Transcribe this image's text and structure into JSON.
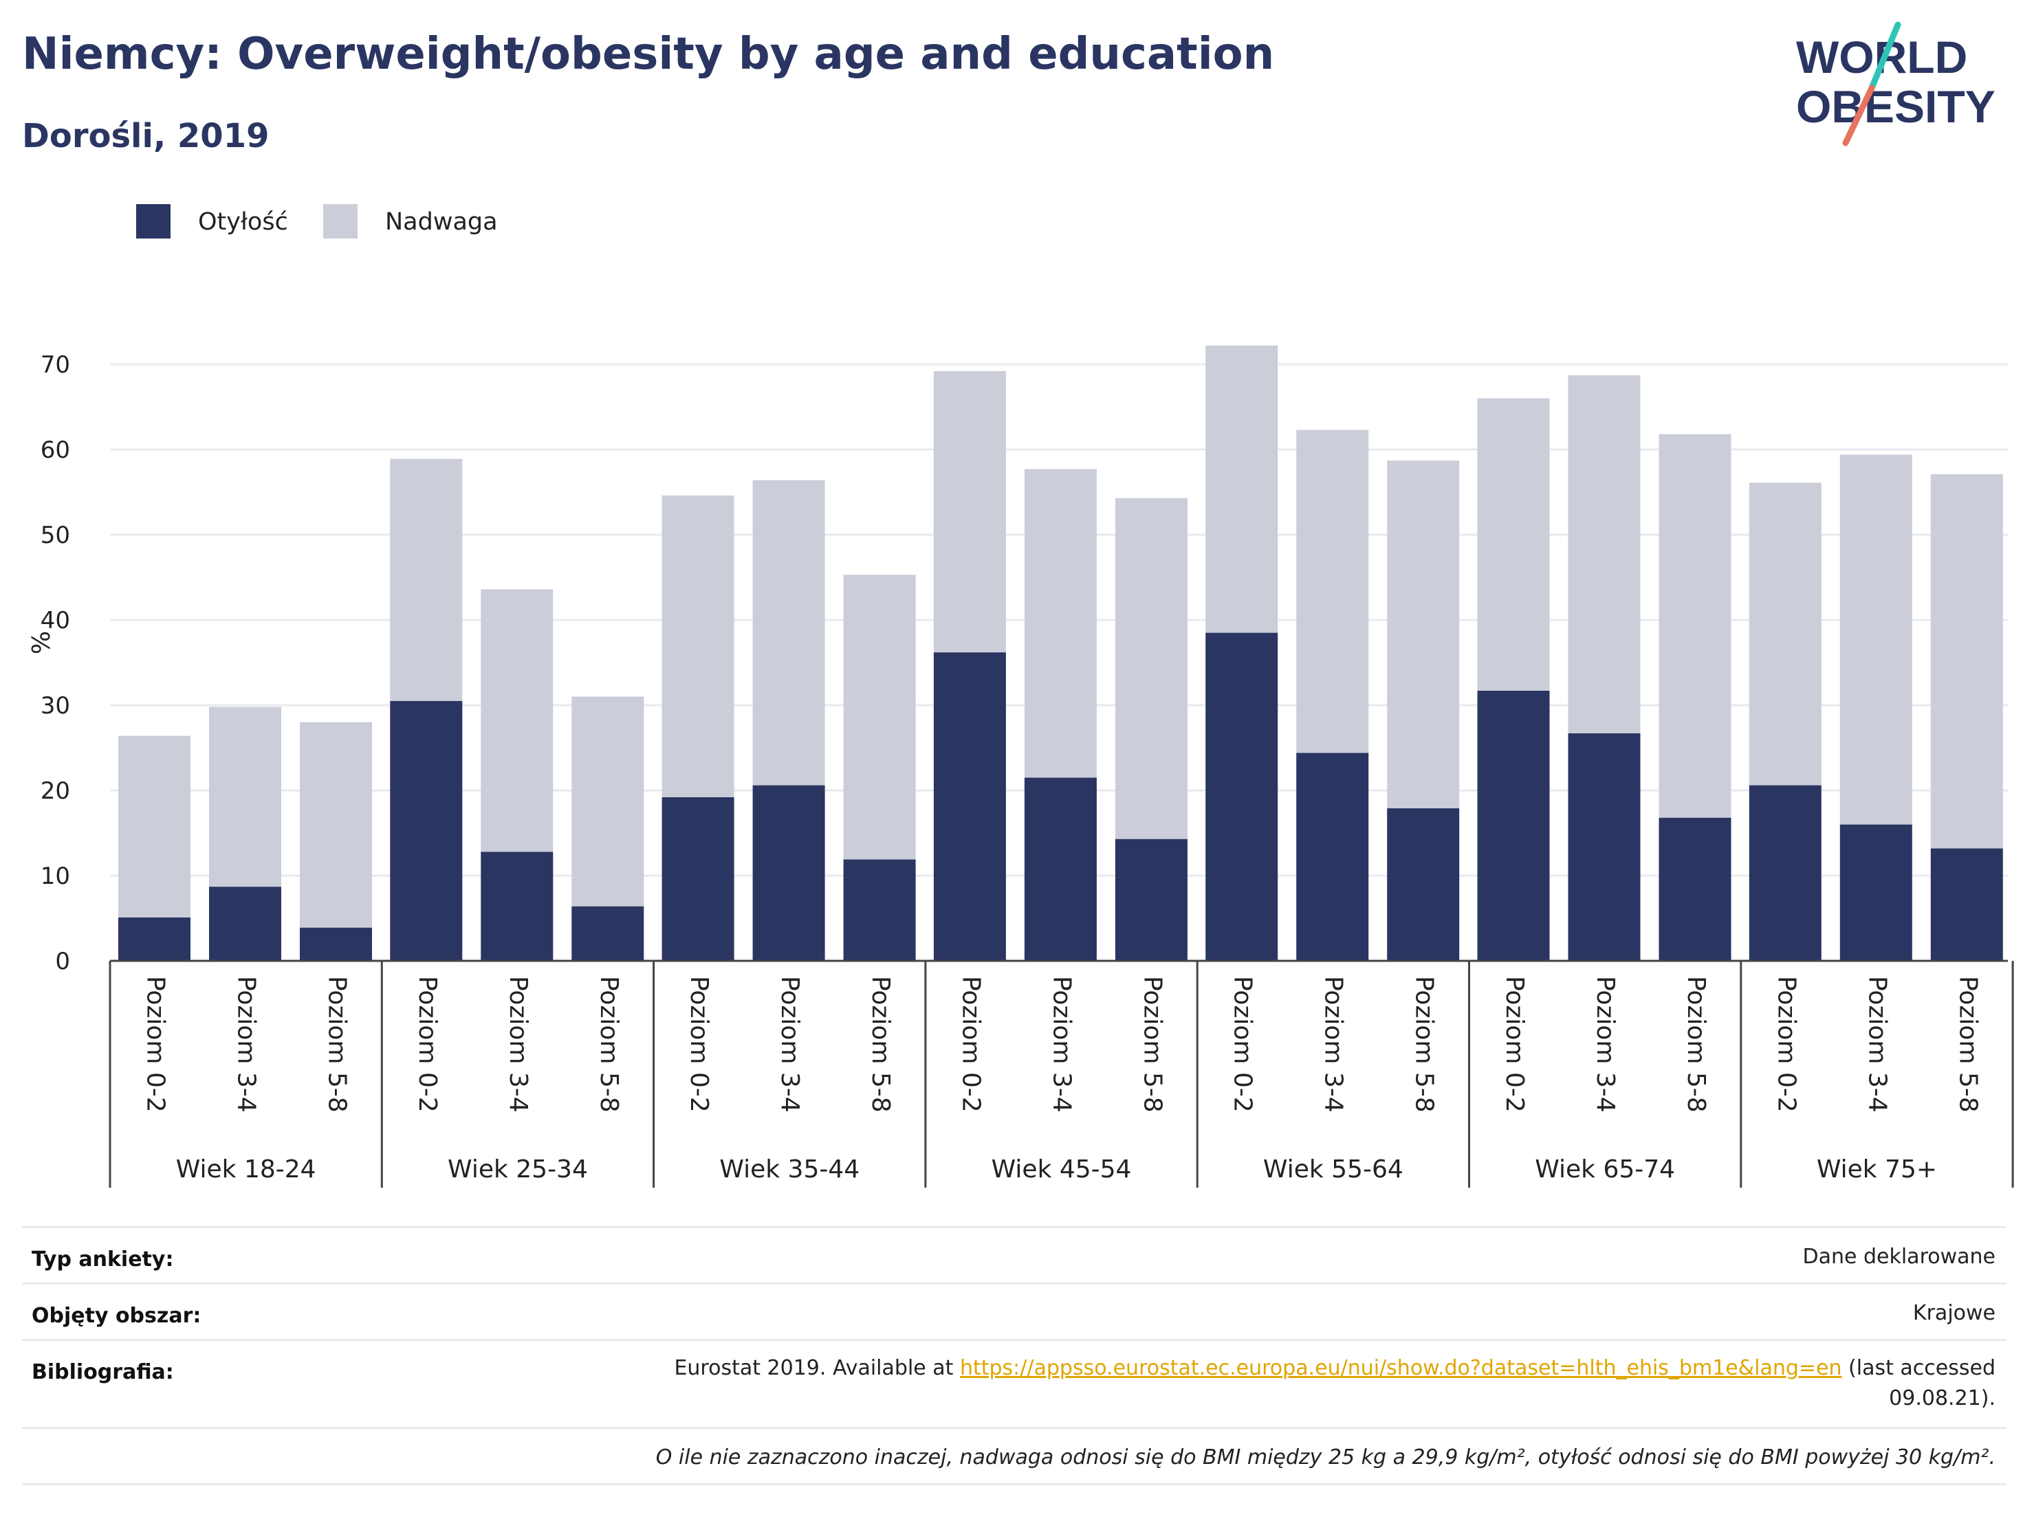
{
  "header": {
    "title": "Niemcy: Overweight/obesity by age and education",
    "subtitle": "Dorośli, 2019"
  },
  "logo": {
    "line1": "WORLD",
    "line2": "OBESITY",
    "colors": {
      "text": "#2a3562",
      "slash_top": "#2ec4b6",
      "slash_bottom": "#e8735f"
    }
  },
  "colors": {
    "obesity": "#2a3562",
    "overweight": "#cbcdd9",
    "grid": "#e9eaf0",
    "axis": "#444444"
  },
  "legend": [
    {
      "label": "Otyłość",
      "color": "#2a3562"
    },
    {
      "label": "Nadwaga",
      "color": "#cbcdd9"
    }
  ],
  "chart_data": {
    "type": "bar",
    "stacked": true,
    "title": "",
    "xlabel": "",
    "ylabel": "%",
    "ylim": [
      0,
      72
    ],
    "yticks": [
      0,
      10,
      20,
      30,
      40,
      50,
      60,
      70
    ],
    "grid": true,
    "legend_position": "top-left",
    "groups": [
      "Wiek 18-24",
      "Wiek 25-34",
      "Wiek 35-44",
      "Wiek 45-54",
      "Wiek 55-64",
      "Wiek 65-74",
      "Wiek 75+"
    ],
    "subcategories": [
      "Poziom 0-2",
      "Poziom 3-4",
      "Poziom 5-8"
    ],
    "series": [
      {
        "name": "Otyłość",
        "values": [
          [
            5.1,
            8.7,
            3.9
          ],
          [
            30.5,
            12.8,
            6.4
          ],
          [
            19.2,
            20.6,
            11.9
          ],
          [
            36.2,
            21.5,
            14.3
          ],
          [
            38.5,
            24.4,
            17.9
          ],
          [
            31.7,
            26.7,
            16.8
          ],
          [
            20.6,
            16.0,
            13.2
          ]
        ]
      },
      {
        "name": "Nadwaga",
        "values": [
          [
            21.3,
            21.1,
            24.1
          ],
          [
            28.4,
            30.8,
            24.6
          ],
          [
            35.4,
            35.8,
            33.4
          ],
          [
            33.0,
            36.2,
            40.0
          ],
          [
            33.7,
            37.9,
            40.8
          ],
          [
            34.3,
            42.0,
            45.0
          ],
          [
            35.5,
            43.4,
            43.9
          ]
        ]
      }
    ]
  },
  "info": {
    "survey_type": {
      "label": "Typ ankiety:",
      "value": "Dane deklarowane"
    },
    "coverage": {
      "label": "Objęty obszar:",
      "value": "Krajowe"
    },
    "bibliography": {
      "label": "Bibliografia:",
      "prefix": "Eurostat 2019. Available at ",
      "link": "https://appsso.eurostat.ec.europa.eu/nui/show.do?dataset=hlth_ehis_bm1e&lang=en",
      "suffix": " (last accessed",
      "line2": "09.08.21)."
    },
    "note": "O ile nie zaznaczono inaczej, nadwaga odnosi się do BMI między 25 kg a 29,9 kg/m², otyłość odnosi się do BMI powyżej 30 kg/m²."
  }
}
